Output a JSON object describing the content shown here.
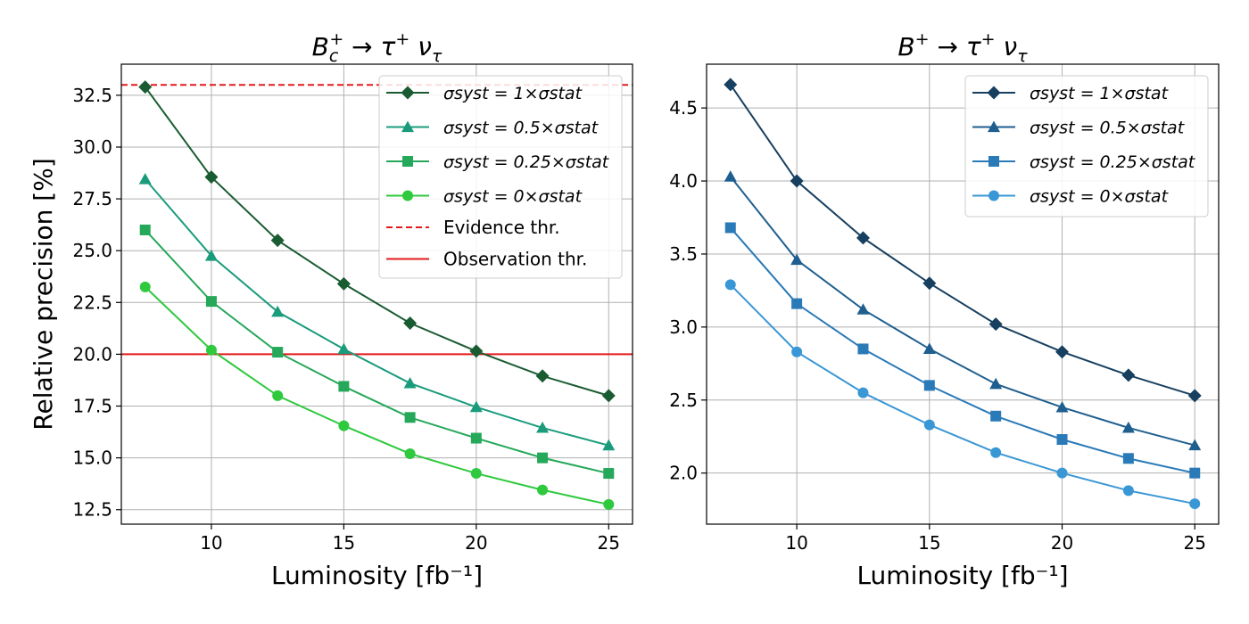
{
  "chart_data": [
    {
      "type": "line",
      "title": "B_c^+ → τ^+ ν_τ",
      "title_parts": {
        "main": "B",
        "sub": "c",
        "sup": "+",
        "arrow": " → ",
        "tau": "τ",
        "tau_sup": "+",
        "nu": " ν",
        "nu_sub": "τ"
      },
      "xlabel": "Luminosity [fb⁻¹]",
      "ylabel": "Relative precision [%]",
      "xlim": [
        6.6,
        25.9
      ],
      "ylim": [
        11.8,
        34.0
      ],
      "xticks": [
        10,
        15,
        20,
        25
      ],
      "xtick_labels": [
        "10",
        "15",
        "20",
        "25"
      ],
      "yticks": [
        12.5,
        15.0,
        17.5,
        20.0,
        22.5,
        25.0,
        27.5,
        30.0,
        32.5
      ],
      "ytick_labels": [
        "12.5",
        "15.0",
        "17.5",
        "20.0",
        "22.5",
        "25.0",
        "27.5",
        "30.0",
        "32.5"
      ],
      "grid": true,
      "legend_position": "top-right",
      "x": [
        7.5,
        10,
        12.5,
        15,
        17.5,
        20,
        22.5,
        25
      ],
      "series": [
        {
          "name": "σsyst = 1×σstat",
          "factor": "1",
          "marker": "diamond",
          "color": "#1a5c32",
          "values": [
            32.9,
            28.55,
            25.5,
            23.4,
            21.5,
            20.15,
            18.95,
            18.0
          ]
        },
        {
          "name": "σsyst = 0.5×σstat",
          "factor": "0.5",
          "marker": "triangle",
          "color": "#1a9c7c",
          "values": [
            28.45,
            24.75,
            22.05,
            20.25,
            18.6,
            17.45,
            16.45,
            15.6
          ]
        },
        {
          "name": "σsyst = 0.25×σstat",
          "factor": "0.25",
          "marker": "square",
          "color": "#25a85a",
          "values": [
            26.0,
            22.55,
            20.1,
            18.45,
            16.95,
            15.95,
            15.0,
            14.25
          ]
        },
        {
          "name": "σsyst = 0×σstat",
          "factor": "0",
          "marker": "circle",
          "color": "#2ec93d",
          "values": [
            23.25,
            20.2,
            18.0,
            16.55,
            15.2,
            14.25,
            13.45,
            12.75
          ]
        }
      ],
      "hlines": [
        {
          "name": "Evidence thr.",
          "value": 33.0,
          "style": "dashed",
          "color": "#e31a1c"
        },
        {
          "name": "Observation thr.",
          "value": 20.0,
          "style": "solid",
          "color": "#e31a1c"
        }
      ]
    },
    {
      "type": "line",
      "title": "B^+ → τ^+ ν_τ",
      "title_parts": {
        "main": "B",
        "sub": "",
        "sup": "+",
        "arrow": " → ",
        "tau": "τ",
        "tau_sup": "+",
        "nu": " ν",
        "nu_sub": "τ"
      },
      "xlabel": "Luminosity [fb⁻¹]",
      "ylabel": "",
      "xlim": [
        6.6,
        25.9
      ],
      "ylim": [
        1.65,
        4.8
      ],
      "xticks": [
        10,
        15,
        20,
        25
      ],
      "xtick_labels": [
        "10",
        "15",
        "20",
        "25"
      ],
      "yticks": [
        2.0,
        2.5,
        3.0,
        3.5,
        4.0,
        4.5
      ],
      "ytick_labels": [
        "2.0",
        "2.5",
        "3.0",
        "3.5",
        "4.0",
        "4.5"
      ],
      "grid": true,
      "legend_position": "top-right",
      "x": [
        7.5,
        10,
        12.5,
        15,
        17.5,
        20,
        22.5,
        25
      ],
      "series": [
        {
          "name": "σsyst = 1×σstat",
          "factor": "1",
          "marker": "diamond",
          "color": "#173f5f",
          "values": [
            4.66,
            4.0,
            3.61,
            3.3,
            3.02,
            2.83,
            2.67,
            2.53
          ]
        },
        {
          "name": "σsyst = 0.5×σstat",
          "factor": "0.5",
          "marker": "triangle",
          "color": "#1f5f8f",
          "values": [
            4.03,
            3.46,
            3.12,
            2.85,
            2.61,
            2.45,
            2.31,
            2.19
          ]
        },
        {
          "name": "σsyst = 0.25×σstat",
          "factor": "0.25",
          "marker": "square",
          "color": "#2a7ab8",
          "values": [
            3.68,
            3.16,
            2.85,
            2.6,
            2.39,
            2.23,
            2.1,
            2.0
          ]
        },
        {
          "name": "σsyst = 0×σstat",
          "factor": "0",
          "marker": "circle",
          "color": "#3a97d5",
          "values": [
            3.29,
            2.83,
            2.55,
            2.33,
            2.14,
            2.0,
            1.88,
            1.79
          ]
        }
      ],
      "hlines": []
    }
  ]
}
